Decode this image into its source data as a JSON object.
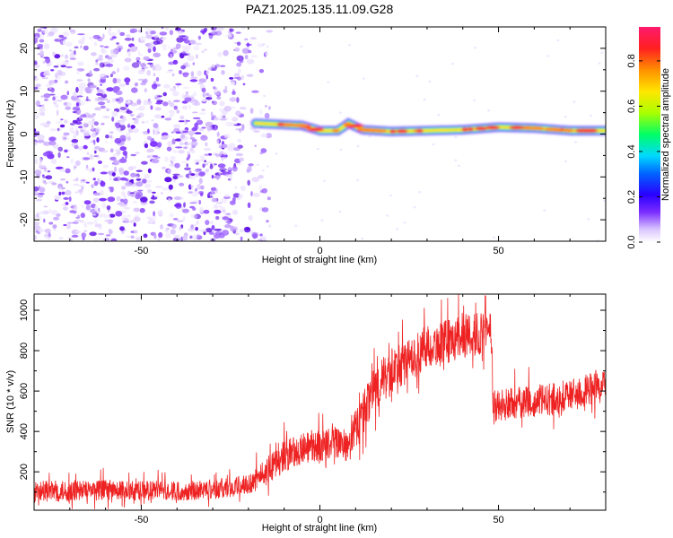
{
  "title": "PAZ1.2025.135.11.09.G28",
  "colors": {
    "snr_line": "#ee2222",
    "scatter_purple": "#6a1fd6",
    "colormap": [
      "#f8f5ff",
      "#d9c4ff",
      "#8a3cff",
      "#3a00ff",
      "#1e5bff",
      "#00c8ff",
      "#00ff70",
      "#b8ff00",
      "#ffe100",
      "#ff8c00",
      "#ff2a2a",
      "#ff1a66"
    ]
  },
  "chart_data": [
    {
      "type": "heatmap",
      "title": "PAZ1.2025.135.11.09.G28",
      "xlabel": "Height of straight line (km)",
      "ylabel": "Frequency (Hz)",
      "xlim": [
        -80,
        80
      ],
      "ylim": [
        -25,
        25
      ],
      "xticks": [
        -50,
        0,
        50
      ],
      "yticks": [
        -20,
        -10,
        0,
        10,
        20
      ],
      "colorbar": {
        "label": "Normalized spectral amplitude",
        "range": [
          0,
          0.95
        ],
        "ticks": [
          0.0,
          0.2,
          0.4,
          0.6,
          0.8
        ]
      },
      "noise_region_x": [
        -80,
        -18
      ],
      "signal_band": {
        "x": [
          -18,
          -10,
          -5,
          0,
          5,
          8,
          12,
          20,
          30,
          40,
          50,
          60,
          70,
          80
        ],
        "freq": [
          2.5,
          2.2,
          2.0,
          0.8,
          0.8,
          2.5,
          1.0,
          0.6,
          0.8,
          1.0,
          1.6,
          1.4,
          0.8,
          0.8
        ]
      }
    },
    {
      "type": "line",
      "xlabel": "Height of straight line (km)",
      "ylabel": "SNR (10 * v/v)",
      "xlim": [
        -80,
        80
      ],
      "ylim": [
        10,
        1080
      ],
      "xticks": [
        -50,
        0,
        50
      ],
      "yticks": [
        200,
        400,
        600,
        800,
        1000
      ],
      "envelope": {
        "x": [
          -80,
          -60,
          -40,
          -25,
          -20,
          -15,
          -10,
          -5,
          0,
          5,
          8,
          10,
          12,
          15,
          20,
          25,
          30,
          35,
          40,
          45,
          48,
          48.5,
          55,
          60,
          65,
          70,
          75,
          80
        ],
        "mean": [
          100,
          110,
          105,
          120,
          140,
          200,
          280,
          310,
          330,
          350,
          320,
          420,
          480,
          600,
          700,
          750,
          820,
          840,
          870,
          880,
          880,
          520,
          540,
          550,
          560,
          580,
          600,
          610
        ],
        "spread": [
          55,
          50,
          50,
          50,
          55,
          70,
          80,
          80,
          80,
          80,
          80,
          100,
          110,
          120,
          110,
          110,
          110,
          110,
          110,
          110,
          110,
          90,
          80,
          80,
          80,
          80,
          90,
          90
        ]
      }
    }
  ]
}
